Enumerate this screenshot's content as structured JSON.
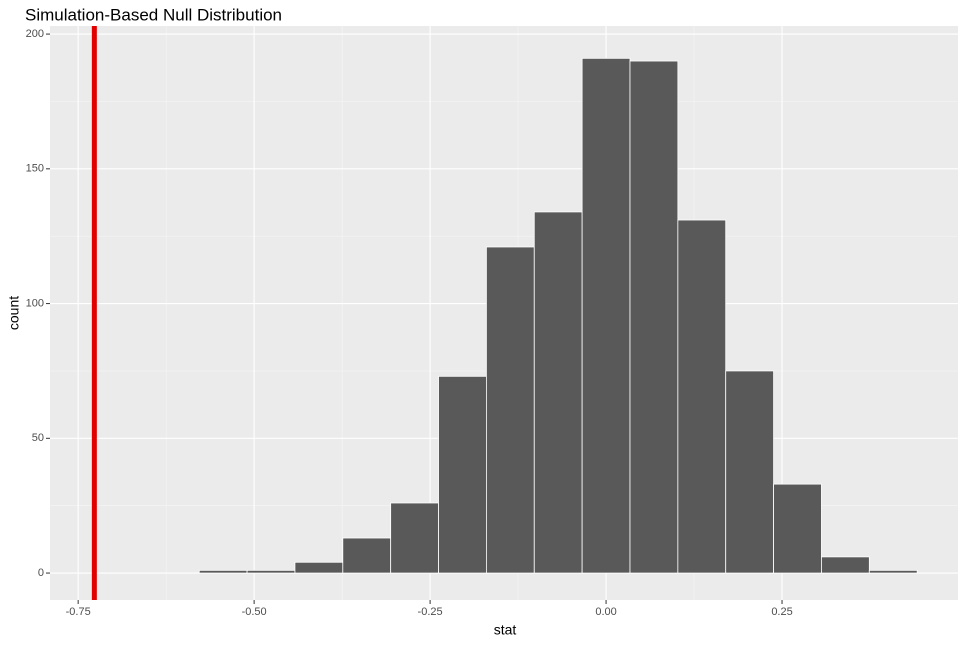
{
  "chart_data": {
    "type": "histogram",
    "title": "Simulation-Based Null Distribution",
    "x_label": "stat",
    "y_label": "count",
    "bins": [
      -0.578,
      -0.51,
      -0.442,
      -0.374,
      -0.306,
      -0.238,
      -0.17,
      -0.102,
      -0.034,
      0.034,
      0.102,
      0.17,
      0.238,
      0.306,
      0.374,
      0.442
    ],
    "values": [
      1,
      1,
      4,
      13,
      26,
      73,
      121,
      134,
      191,
      190,
      131,
      75,
      33,
      6,
      1
    ],
    "color": "#595959",
    "vline": {
      "x": -0.727,
      "color": "#e00000"
    },
    "xlim": [
      -0.79,
      0.5
    ],
    "xticks": [
      -0.75,
      {
        "value": -0.5,
        "label": "-0.50"
      },
      -0.25,
      {
        "value": 0,
        "label": "0.00"
      },
      0.25
    ],
    "ylim": [
      -10,
      203
    ],
    "yticks": [
      0,
      50,
      100,
      150,
      200
    ],
    "grid": true
  }
}
